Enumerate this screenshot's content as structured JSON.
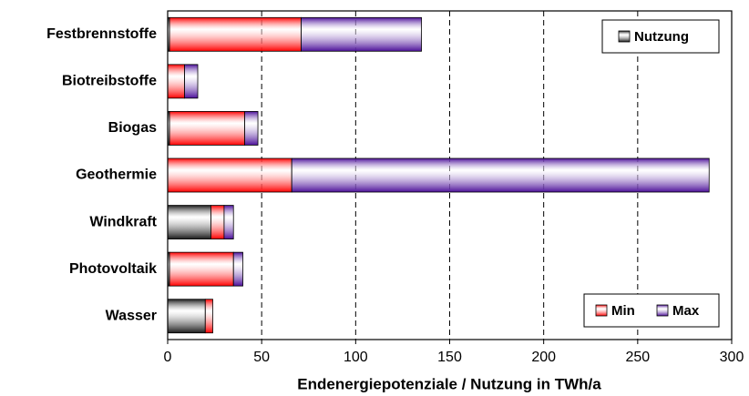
{
  "chart_data": {
    "type": "stacked-barh",
    "xlabel": "Endenergiepotenziale / Nutzung in TWh/a",
    "categories": [
      "Festbrennstoffe",
      "Biotreibstoffe",
      "Biogas",
      "Geothermie",
      "Windkraft",
      "Photovoltaik",
      "Wasser"
    ],
    "series": [
      {
        "name": "Nutzung",
        "color": "#1a1a1a",
        "values": [
          1,
          0,
          1,
          0,
          23,
          1,
          20
        ]
      },
      {
        "name": "Min",
        "color": "#ff0000",
        "values": [
          70,
          9,
          40,
          66,
          7,
          34,
          4
        ]
      },
      {
        "name": "Max",
        "color": "#4b0f99",
        "values": [
          64,
          7,
          7,
          222,
          5,
          5,
          0
        ]
      }
    ],
    "xlim": [
      0,
      300
    ],
    "xticks": [
      0,
      50,
      100,
      150,
      200,
      250,
      300
    ],
    "grid": true
  }
}
